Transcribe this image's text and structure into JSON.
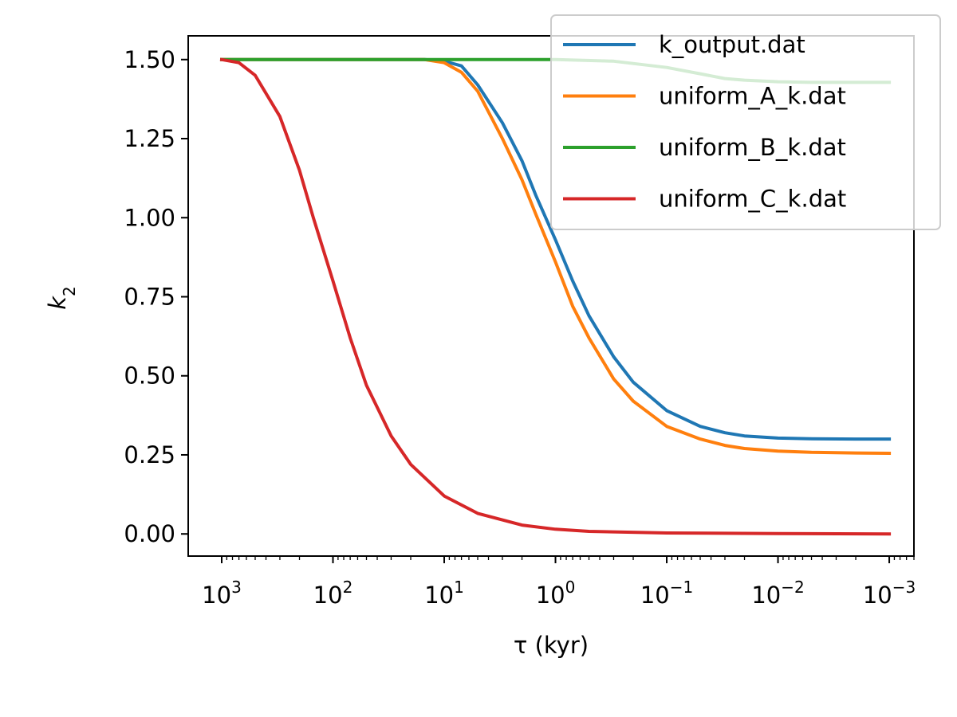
{
  "chart_data": {
    "type": "line",
    "xlabel": "τ (kyr)",
    "ylabel": "k",
    "ylabel_subscript": "2",
    "x_scale": "log",
    "x_inverted": true,
    "xlim": [
      2000,
      0.0006
    ],
    "ylim": [
      -0.07,
      1.575
    ],
    "x_ticks": [
      {
        "value": 1000,
        "base": "10",
        "exp": "3"
      },
      {
        "value": 100,
        "base": "10",
        "exp": "2"
      },
      {
        "value": 10,
        "base": "10",
        "exp": "1"
      },
      {
        "value": 1,
        "base": "10",
        "exp": "0"
      },
      {
        "value": 0.1,
        "base": "10",
        "exp": "−1"
      },
      {
        "value": 0.01,
        "base": "10",
        "exp": "−2"
      },
      {
        "value": 0.001,
        "base": "10",
        "exp": "−3"
      }
    ],
    "y_ticks": [
      {
        "value": 0.0,
        "label": "0.00"
      },
      {
        "value": 0.25,
        "label": "0.25"
      },
      {
        "value": 0.5,
        "label": "0.50"
      },
      {
        "value": 0.75,
        "label": "0.75"
      },
      {
        "value": 1.0,
        "label": "1.00"
      },
      {
        "value": 1.25,
        "label": "1.25"
      },
      {
        "value": 1.5,
        "label": "1.50"
      }
    ],
    "grid": false,
    "legend_position": "top-right",
    "series": [
      {
        "name": "k_output.dat",
        "color": "#1f77b4",
        "x": [
          1000,
          100,
          30,
          15,
          10,
          7,
          5,
          3,
          2,
          1.5,
          1,
          0.7,
          0.5,
          0.3,
          0.2,
          0.1,
          0.05,
          0.03,
          0.02,
          0.01,
          0.005,
          0.002,
          0.001
        ],
        "y": [
          1.5,
          1.5,
          1.5,
          1.5,
          1.495,
          1.48,
          1.42,
          1.3,
          1.18,
          1.07,
          0.93,
          0.8,
          0.69,
          0.56,
          0.48,
          0.39,
          0.34,
          0.32,
          0.31,
          0.303,
          0.301,
          0.3,
          0.3
        ]
      },
      {
        "name": "uniform_A_k.dat",
        "color": "#ff7f0e",
        "x": [
          1000,
          100,
          30,
          15,
          10,
          7,
          5,
          3,
          2,
          1.5,
          1,
          0.7,
          0.5,
          0.3,
          0.2,
          0.1,
          0.05,
          0.03,
          0.02,
          0.01,
          0.005,
          0.002,
          0.001
        ],
        "y": [
          1.5,
          1.5,
          1.5,
          1.5,
          1.49,
          1.46,
          1.4,
          1.25,
          1.12,
          1.01,
          0.86,
          0.72,
          0.62,
          0.49,
          0.42,
          0.34,
          0.3,
          0.28,
          0.27,
          0.262,
          0.258,
          0.256,
          0.255
        ]
      },
      {
        "name": "uniform_B_k.dat",
        "color": "#2ca02c",
        "x": [
          1000,
          1,
          0.3,
          0.1,
          0.05,
          0.03,
          0.02,
          0.01,
          0.005,
          0.002,
          0.001
        ],
        "y": [
          1.5,
          1.5,
          1.495,
          1.475,
          1.455,
          1.44,
          1.435,
          1.43,
          1.428,
          1.428,
          1.428
        ]
      },
      {
        "name": "uniform_C_k.dat",
        "color": "#d62728",
        "x": [
          1000,
          700,
          500,
          300,
          200,
          150,
          100,
          70,
          50,
          30,
          20,
          10,
          5,
          2,
          1,
          0.5,
          0.1,
          0.01,
          0.001
        ],
        "y": [
          1.5,
          1.49,
          1.45,
          1.32,
          1.15,
          1.0,
          0.8,
          0.62,
          0.47,
          0.31,
          0.22,
          0.12,
          0.065,
          0.028,
          0.015,
          0.008,
          0.003,
          0.001,
          0.0
        ]
      }
    ]
  }
}
